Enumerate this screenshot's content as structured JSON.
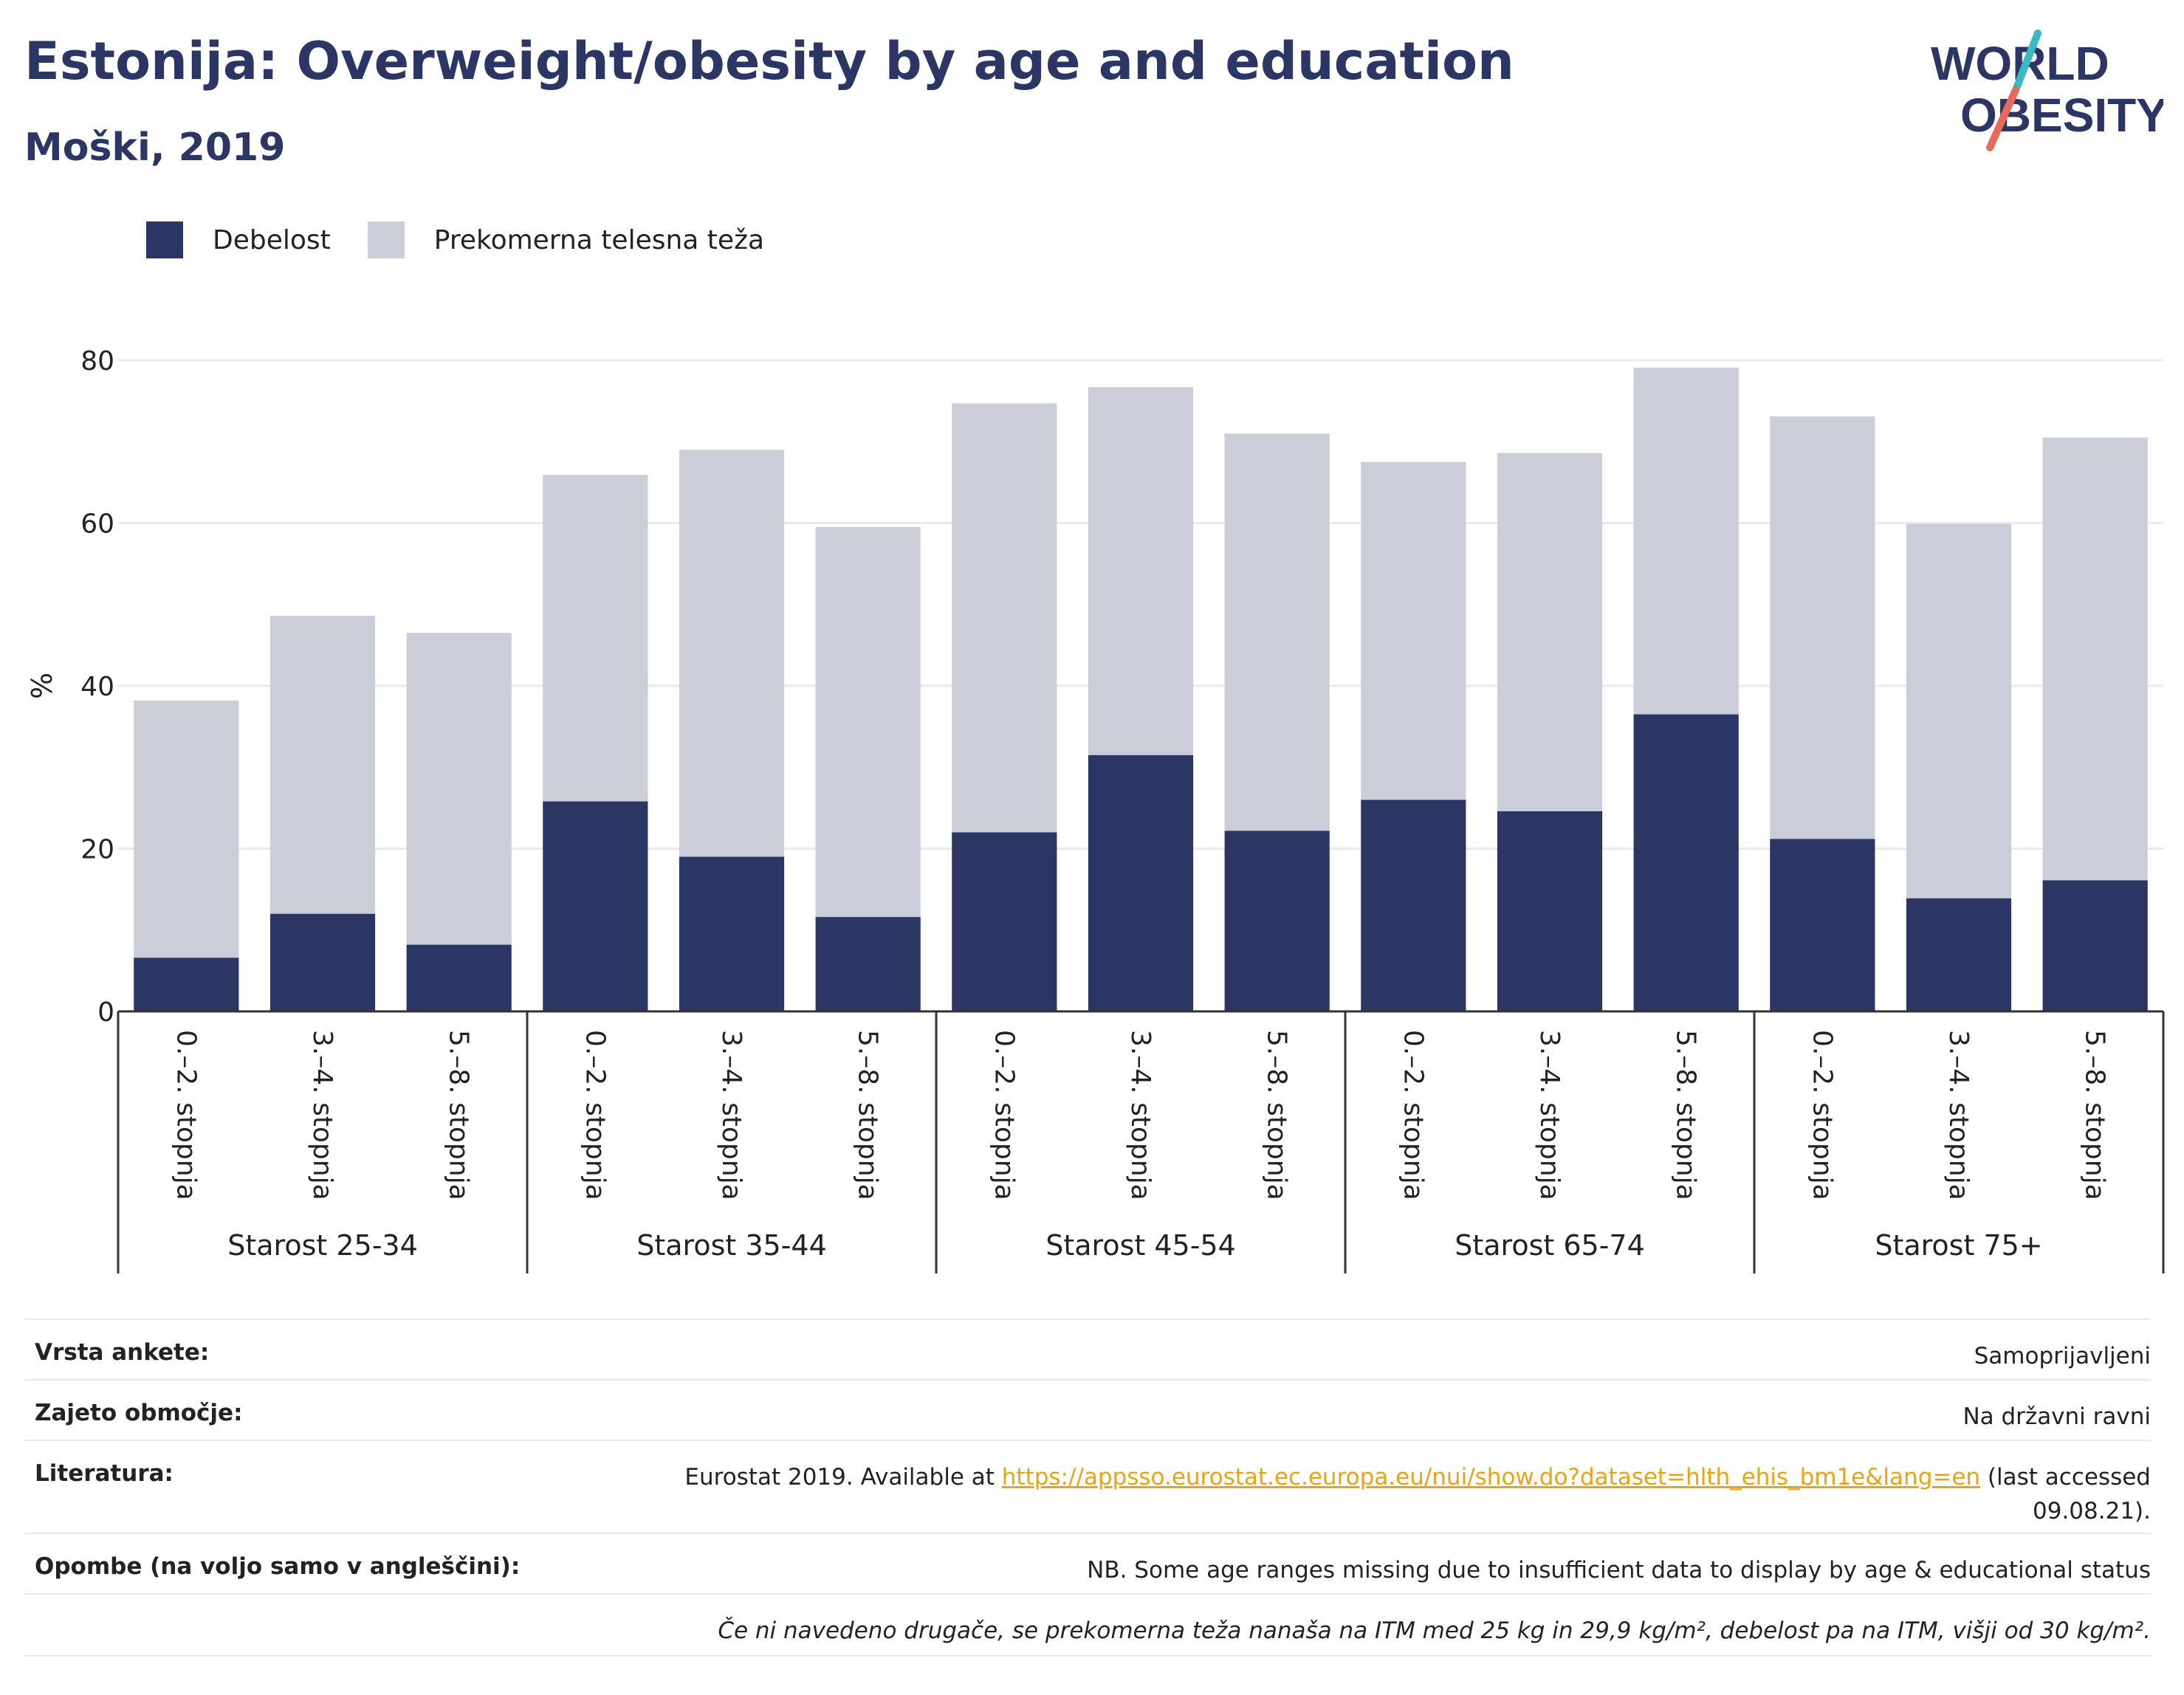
{
  "title": "Estonija: Overweight/obesity by age and education",
  "subtitle": "Moški, 2019",
  "logo": {
    "line1": "WORLD",
    "line2": "OBESITY"
  },
  "colors": {
    "obesity": "#2b3664",
    "overweight": "#cbcdd9",
    "grid": "#e8eaf0",
    "axis": "#333333",
    "text": "#222222",
    "link": "#e8a317",
    "logo_stroke_teal": "#3bb8c3",
    "logo_stroke_coral": "#e8685a"
  },
  "chart_data": {
    "type": "bar",
    "stacked": true,
    "ylabel": "%",
    "ylim": [
      0,
      80
    ],
    "yticks": [
      0,
      20,
      40,
      60,
      80
    ],
    "grid": true,
    "legend_position": "top-left",
    "groups": [
      {
        "label": "Starost 25-34",
        "categories": [
          "0.–2. stopnja",
          "3.–4. stopnja",
          "5.–8. stopnja"
        ]
      },
      {
        "label": "Starost 35-44",
        "categories": [
          "0.–2. stopnja",
          "3.–4. stopnja",
          "5.–8. stopnja"
        ]
      },
      {
        "label": "Starost 45-54",
        "categories": [
          "0.–2. stopnja",
          "3.–4. stopnja",
          "5.–8. stopnja"
        ]
      },
      {
        "label": "Starost 65-74",
        "categories": [
          "0.–2. stopnja",
          "3.–4. stopnja",
          "5.–8. stopnja"
        ]
      },
      {
        "label": "Starost 75+",
        "categories": [
          "0.–2. stopnja",
          "3.–4. stopnja",
          "5.–8. stopnja"
        ]
      }
    ],
    "series": [
      {
        "name": "Debelost",
        "values": [
          6.6,
          12.0,
          8.2,
          25.8,
          19.0,
          11.6,
          22.0,
          31.5,
          22.2,
          26.0,
          24.6,
          36.5,
          21.2,
          13.9,
          16.1
        ]
      },
      {
        "name": "Prekomerna telesna teža",
        "values": [
          31.6,
          36.6,
          38.3,
          40.1,
          50.0,
          47.9,
          52.7,
          45.2,
          48.8,
          41.5,
          44.0,
          42.6,
          51.9,
          46.0,
          54.4
        ]
      }
    ]
  },
  "info": {
    "survey_label": "Vrsta ankete:",
    "survey_value": "Samoprijavljeni",
    "coverage_label": "Zajeto območje:",
    "coverage_value": "Na državni ravni",
    "reference_label": "Literatura:",
    "reference_prefix": "Eurostat 2019. Available at ",
    "reference_link": "https://appsso.eurostat.ec.europa.eu/nui/show.do?dataset=hlth_ehis_bm1e&lang=en",
    "reference_suffix": " (last accessed",
    "reference_line2": "09.08.21).",
    "notes_label": "Opombe (na voljo samo v angleščini):",
    "notes_value": "NB. Some age ranges missing due to insufficient data to display by age & educational status",
    "definition": "Če ni navedeno drugače, se prekomerna teža nanaša na ITM med 25 kg in 29,9 kg/m², debelost pa na ITM, višji od 30 kg/m²."
  }
}
